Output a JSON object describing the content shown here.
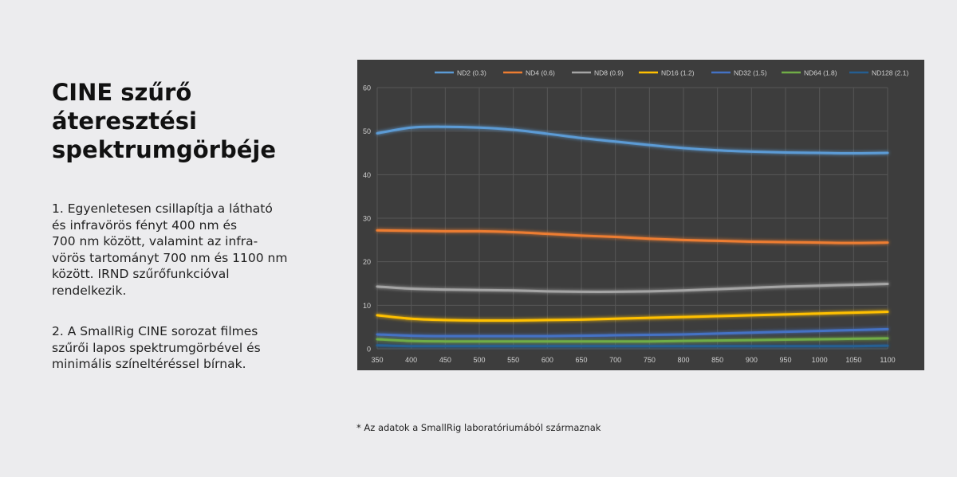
{
  "heading": "CINE szűrő áteresztési spektrumgörbéje",
  "paragraph1": "1. Egyenletesen csillapítja a látható\nés infravörös fényt 400 nm és\n700 nm között, valamint az infra-\nvörös tartományt 700 nm és 1100 nm\nközött. IRND szűrőfunkcióval\nrendelkezik.",
  "paragraph2": "2. A SmallRig CINE sorozat filmes\nszűrői lapos spektrumgörbével és\nminimális színeltéréssel bírnak.",
  "footnote": "* Az adatok a SmallRig laboratóriumából származnak",
  "colors": {
    "chart_background": "#3d3d3d",
    "gridline": "#575757",
    "tick_text": "#d0d0d0"
  },
  "chart_data": {
    "type": "line",
    "title": "",
    "xlabel": "",
    "ylabel": "",
    "legend_position": "top",
    "grid": true,
    "xlim": [
      350,
      1100
    ],
    "ylim": [
      0,
      60
    ],
    "x_ticks": [
      350,
      400,
      450,
      500,
      550,
      600,
      650,
      700,
      750,
      800,
      850,
      900,
      950,
      1000,
      1050,
      1100
    ],
    "y_ticks": [
      0,
      10,
      20,
      30,
      40,
      50,
      60
    ],
    "x": [
      350,
      400,
      450,
      500,
      550,
      600,
      650,
      700,
      750,
      800,
      850,
      900,
      950,
      1000,
      1050,
      1100
    ],
    "series": [
      {
        "name": "ND2 (0.3)",
        "color": "#5b9bd5",
        "values": [
          49.5,
          50.8,
          51.0,
          50.8,
          50.3,
          49.4,
          48.4,
          47.6,
          46.8,
          46.1,
          45.6,
          45.3,
          45.1,
          45.0,
          44.9,
          45.0
        ]
      },
      {
        "name": "ND4 (0.6)",
        "color": "#ed7d31",
        "values": [
          27.2,
          27.1,
          27.0,
          27.0,
          26.8,
          26.4,
          26.0,
          25.7,
          25.3,
          25.0,
          24.8,
          24.6,
          24.5,
          24.4,
          24.3,
          24.4
        ]
      },
      {
        "name": "ND8 (0.9)",
        "color": "#a5a5a5",
        "values": [
          14.3,
          13.8,
          13.6,
          13.5,
          13.4,
          13.2,
          13.1,
          13.1,
          13.2,
          13.4,
          13.7,
          14.0,
          14.3,
          14.5,
          14.7,
          14.9
        ]
      },
      {
        "name": "ND16 (1.2)",
        "color": "#ffc000",
        "values": [
          7.7,
          6.9,
          6.6,
          6.5,
          6.5,
          6.6,
          6.7,
          6.9,
          7.1,
          7.3,
          7.5,
          7.7,
          7.9,
          8.1,
          8.3,
          8.5
        ]
      },
      {
        "name": "ND32 (1.5)",
        "color": "#4472c4",
        "values": [
          3.3,
          3.0,
          2.9,
          2.9,
          2.9,
          2.9,
          3.0,
          3.1,
          3.2,
          3.3,
          3.5,
          3.7,
          3.9,
          4.1,
          4.3,
          4.5
        ]
      },
      {
        "name": "ND64 (1.8)",
        "color": "#70ad47",
        "values": [
          2.2,
          1.8,
          1.7,
          1.7,
          1.7,
          1.7,
          1.7,
          1.7,
          1.7,
          1.8,
          1.9,
          2.0,
          2.1,
          2.2,
          2.3,
          2.4
        ]
      },
      {
        "name": "ND128 (2.1)",
        "color": "#255e91",
        "values": [
          0.8,
          0.6,
          0.6,
          0.6,
          0.6,
          0.6,
          0.6,
          0.6,
          0.6,
          0.6,
          0.6,
          0.6,
          0.6,
          0.6,
          0.6,
          0.7
        ]
      }
    ]
  }
}
